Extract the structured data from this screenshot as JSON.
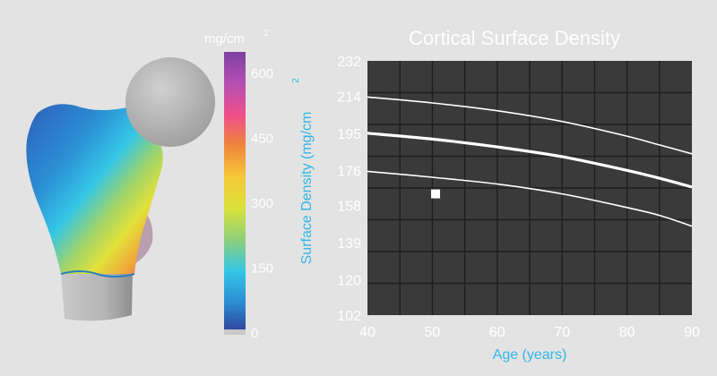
{
  "colorbar": {
    "unit_label": "mg/cm",
    "unit_superscript": "2",
    "ticks": [
      "600",
      "450",
      "300",
      "150",
      "0"
    ],
    "range": [
      0,
      650
    ],
    "colors": [
      "#2f3f98",
      "#2b8fd4",
      "#35c6e6",
      "#8fd07a",
      "#d9e23a",
      "#f6c838",
      "#f0853a",
      "#ee4f8c",
      "#b44fb4",
      "#7d3f9e"
    ]
  },
  "model": {
    "description_icon": "femur-density-map-icon",
    "head_color": "#bdbdbd",
    "shaft_color": "#bdbdbd"
  },
  "chart_data": {
    "type": "line",
    "title": "Cortical Surface Density",
    "xlabel": "Age (years)",
    "ylabel": "Surface Density (mg/cm",
    "ylabel_superscript": "2",
    "xlim": [
      40,
      90
    ],
    "ylim": [
      102,
      232
    ],
    "xticks": [
      "40",
      "50",
      "60",
      "70",
      "80",
      "90"
    ],
    "yticks": [
      "232",
      "214",
      "195",
      "176",
      "158",
      "139",
      "120",
      "102"
    ],
    "grid": true,
    "background": "#3a3a3a",
    "label_color": "#33b6e6",
    "series": [
      {
        "role": "upper",
        "x": [
          40,
          50,
          60,
          70,
          80,
          85,
          90
        ],
        "y": [
          213.5,
          210.5,
          206.5,
          201,
          193.5,
          189,
          184.5
        ]
      },
      {
        "role": "mean",
        "x": [
          40,
          50,
          60,
          70,
          80,
          85,
          90
        ],
        "y": [
          195,
          192,
          188,
          183,
          176,
          172,
          167.5
        ]
      },
      {
        "role": "lower",
        "x": [
          40,
          50,
          60,
          70,
          80,
          85,
          90
        ],
        "y": [
          175.5,
          172.5,
          169,
          164,
          157,
          153,
          147.5
        ]
      }
    ],
    "points": [
      {
        "x": 50.5,
        "y": 164
      }
    ]
  }
}
